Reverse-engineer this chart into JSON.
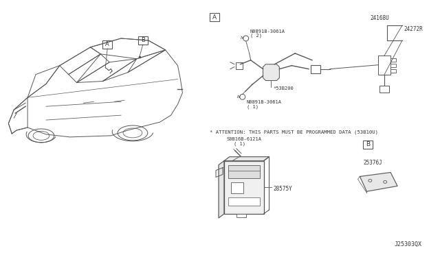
{
  "bg_color": "#ffffff",
  "diagram_id": "J25303QX",
  "attention_text": "* ATTENTION: THIS PARTS MUST BE PROGRAMMED DATA (53B10U)",
  "line_color": "#555555",
  "text_color": "#333333",
  "label_A": "A",
  "label_B": "B",
  "part1_label": "N0891B-3061A",
  "part1_qty": "( 2)",
  "part2_label": "N0891B-3061A",
  "part2_qty": "( 1)",
  "part3_label": "*53B200",
  "part4_label": "24168U",
  "part5_label": "24272R",
  "part6_label": "S0B16B-6121A",
  "part6_qty": "( 1)",
  "part7_label": "28575Y",
  "part8_label": "25376J"
}
